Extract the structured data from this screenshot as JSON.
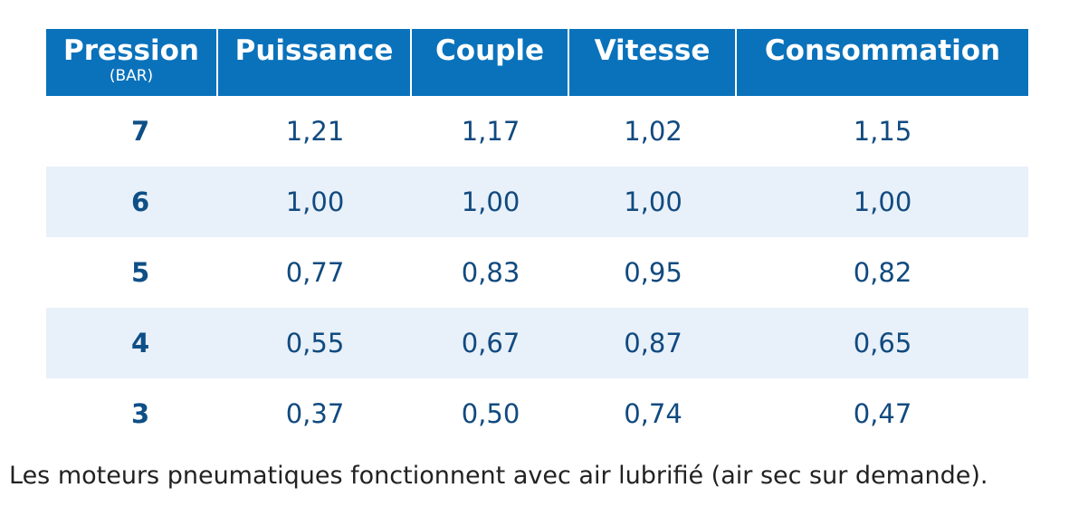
{
  "table": {
    "header": {
      "col1": "Pression",
      "col1_sub": "(BAR)",
      "col2": "Puissance",
      "col3": "Couple",
      "col4": "Vitesse",
      "col5": "Consommation"
    },
    "rows": [
      {
        "pression": "7",
        "puissance": "1,21",
        "couple": "1,17",
        "vitesse": "1,02",
        "consommation": "1,15"
      },
      {
        "pression": "6",
        "puissance": "1,00",
        "couple": "1,00",
        "vitesse": "1,00",
        "consommation": "1,00"
      },
      {
        "pression": "5",
        "puissance": "0,77",
        "couple": "0,83",
        "vitesse": "0,95",
        "consommation": "0,82"
      },
      {
        "pression": "4",
        "puissance": "0,55",
        "couple": "0,67",
        "vitesse": "0,87",
        "consommation": "0,65"
      },
      {
        "pression": "3",
        "puissance": "0,37",
        "couple": "0,50",
        "vitesse": "0,74",
        "consommation": "0,47"
      }
    ]
  },
  "footnote": "Les moteurs pneumatiques fonctionnent avec air lubrifié (air sec sur demande).",
  "colors": {
    "header_bg": "#0a72bb",
    "alt_row_bg": "#e8f0f9",
    "text": "#114a7f"
  }
}
